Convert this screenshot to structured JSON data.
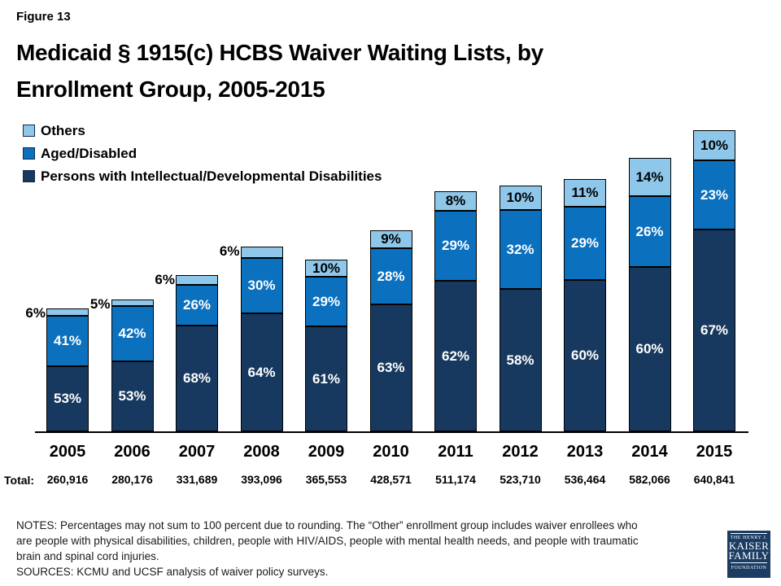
{
  "header": {
    "figure_label": "Figure 13",
    "title_line1": "Medicaid § 1915(c) HCBS Waiver Waiting Lists, by",
    "title_line2": "Enrollment Group, 2005-2015"
  },
  "chart_data": {
    "type": "bar",
    "stacked": true,
    "title": "Medicaid § 1915(c) HCBS Waiver Waiting Lists, by Enrollment Group, 2005-2015",
    "categories": [
      "2005",
      "2006",
      "2007",
      "2008",
      "2009",
      "2010",
      "2011",
      "2012",
      "2013",
      "2014",
      "2015"
    ],
    "totals": [
      260916,
      280176,
      331689,
      393096,
      365553,
      428571,
      511174,
      523710,
      536464,
      582066,
      640841
    ],
    "totals_display": [
      "260,916",
      "280,176",
      "331,689",
      "393,096",
      "365,553",
      "428,571",
      "511,174",
      "523,710",
      "536,464",
      "582,066",
      "640,841"
    ],
    "total_label": "Total:",
    "value_format": "percent",
    "legend_position": "top-left",
    "grid": false,
    "series": [
      {
        "key": "idd",
        "name": "Persons with Intellectual/Developmental Disabilities",
        "color": "#17395f",
        "label_color": "#ffffff",
        "values": [
          53,
          53,
          68,
          64,
          61,
          63,
          62,
          58,
          60,
          60,
          67
        ]
      },
      {
        "key": "aged-disabled",
        "name": "Aged/Disabled",
        "color": "#0b70be",
        "label_color": "#ffffff",
        "values": [
          41,
          42,
          26,
          30,
          29,
          28,
          29,
          32,
          29,
          26,
          23
        ]
      },
      {
        "key": "others",
        "name": "Others",
        "color": "#8ec7ea",
        "label_color": "#000000",
        "values": [
          6,
          5,
          6,
          6,
          10,
          9,
          8,
          10,
          11,
          14,
          10
        ]
      }
    ]
  },
  "notes": {
    "lines": [
      "NOTES: Percentages may not sum to 100 percent due to rounding. The “Other” enrollment group includes waiver enrollees who",
      "are people with physical disabilities, children, people with HIV/AIDS, people with mental health needs, and people with traumatic",
      "brain and spinal cord injuries."
    ],
    "sources": "SOURCES: KCMU and UCSF analysis of waiver policy surveys."
  },
  "logo": {
    "line1": "THE HENRY J.",
    "line2": "KAISER",
    "line3": "FAMILY",
    "line4": "FOUNDATION"
  }
}
